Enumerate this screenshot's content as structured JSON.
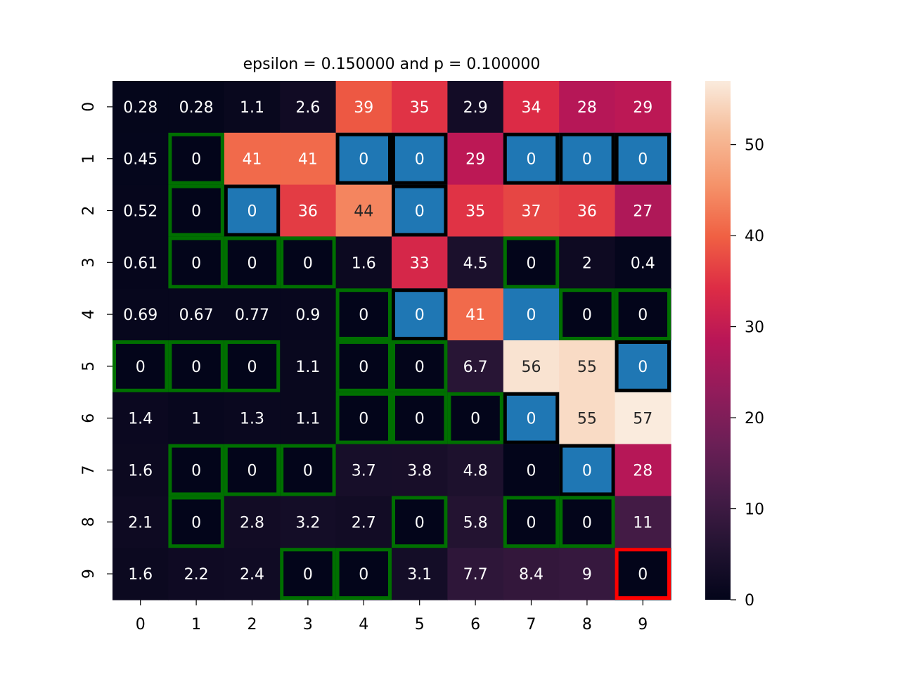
{
  "chart_data": {
    "type": "heatmap",
    "title": "epsilon = 0.150000 and p = 0.100000",
    "x_tick_labels": [
      "0",
      "1",
      "2",
      "3",
      "4",
      "5",
      "6",
      "7",
      "8",
      "9"
    ],
    "y_tick_labels": [
      "0",
      "1",
      "2",
      "3",
      "4",
      "5",
      "6",
      "7",
      "8",
      "9"
    ],
    "values": [
      [
        0.28,
        0.28,
        1.1,
        2.6,
        39,
        35,
        2.9,
        34,
        28,
        29
      ],
      [
        0.45,
        0,
        41,
        41,
        0,
        0,
        29,
        0,
        0,
        0
      ],
      [
        0.52,
        0,
        0,
        36,
        44,
        0,
        35,
        37,
        36,
        27
      ],
      [
        0.61,
        0,
        0,
        0,
        1.6,
        33,
        4.5,
        0,
        2,
        0.4
      ],
      [
        0.69,
        0.67,
        0.77,
        0.9,
        0,
        0,
        41,
        0,
        0,
        0
      ],
      [
        0,
        0,
        0,
        1.1,
        0,
        0,
        6.7,
        56,
        55,
        0
      ],
      [
        1.4,
        1,
        1.3,
        1.1,
        0,
        0,
        0,
        0,
        55,
        57
      ],
      [
        1.6,
        0,
        0,
        0,
        3.7,
        3.8,
        4.8,
        0,
        0,
        28
      ],
      [
        2.1,
        0,
        2.8,
        3.2,
        2.7,
        0,
        5.8,
        0,
        0,
        11
      ],
      [
        1.6,
        2.2,
        2.4,
        0,
        0,
        3.1,
        7.7,
        8.4,
        9,
        0
      ]
    ],
    "labels": [
      [
        "0.28",
        "0.28",
        "1.1",
        "2.6",
        "39",
        "35",
        "2.9",
        "34",
        "28",
        "29"
      ],
      [
        "0.45",
        "0",
        "41",
        "41",
        "0",
        "0",
        "29",
        "0",
        "0",
        "0"
      ],
      [
        "0.52",
        "0",
        "0",
        "36",
        "44",
        "0",
        "35",
        "37",
        "36",
        "27"
      ],
      [
        "0.61",
        "0",
        "0",
        "0",
        "1.6",
        "33",
        "4.5",
        "0",
        "2",
        "0.4"
      ],
      [
        "0.69",
        "0.67",
        "0.77",
        "0.9",
        "0",
        "0",
        "41",
        "0",
        "0",
        "0"
      ],
      [
        "0",
        "0",
        "0",
        "1.1",
        "0",
        "0",
        "6.7",
        "56",
        "55",
        "0"
      ],
      [
        "1.4",
        "1",
        "1.3",
        "1.1",
        "0",
        "0",
        "0",
        "0",
        "55",
        "57"
      ],
      [
        "1.6",
        "0",
        "0",
        "0",
        "3.7",
        "3.8",
        "4.8",
        "0",
        "0",
        "28"
      ],
      [
        "2.1",
        "0",
        "2.8",
        "3.2",
        "2.7",
        "0",
        "5.8",
        "0",
        "0",
        "11"
      ],
      [
        "1.6",
        "2.2",
        "2.4",
        "0",
        "0",
        "3.1",
        "7.7",
        "8.4",
        "9",
        "0"
      ]
    ],
    "colorbar": {
      "min": 0,
      "max": 57,
      "ticks": [
        0,
        10,
        20,
        30,
        40,
        50
      ]
    },
    "colormap": "rocket",
    "blue_cells": [
      [
        1,
        4
      ],
      [
        1,
        5
      ],
      [
        1,
        7
      ],
      [
        1,
        8
      ],
      [
        1,
        9
      ],
      [
        2,
        2
      ],
      [
        2,
        5
      ],
      [
        4,
        5
      ],
      [
        4,
        7
      ],
      [
        5,
        9
      ],
      [
        6,
        7
      ],
      [
        7,
        8
      ]
    ],
    "black_outlined_cells": [
      [
        1,
        4
      ],
      [
        1,
        5
      ],
      [
        1,
        7
      ],
      [
        1,
        8
      ],
      [
        1,
        9
      ],
      [
        2,
        2
      ],
      [
        2,
        5
      ],
      [
        4,
        5
      ],
      [
        5,
        9
      ],
      [
        6,
        7
      ],
      [
        7,
        8
      ]
    ],
    "green_outlined_cells": [
      [
        1,
        1
      ],
      [
        2,
        1
      ],
      [
        3,
        1
      ],
      [
        3,
        2
      ],
      [
        3,
        3
      ],
      [
        3,
        7
      ],
      [
        4,
        4
      ],
      [
        4,
        8
      ],
      [
        4,
        9
      ],
      [
        5,
        0
      ],
      [
        5,
        1
      ],
      [
        5,
        2
      ],
      [
        5,
        4
      ],
      [
        5,
        5
      ],
      [
        6,
        4
      ],
      [
        6,
        5
      ],
      [
        6,
        6
      ],
      [
        7,
        1
      ],
      [
        7,
        2
      ],
      [
        7,
        3
      ],
      [
        8,
        1
      ],
      [
        8,
        5
      ],
      [
        8,
        7
      ],
      [
        8,
        8
      ],
      [
        9,
        3
      ],
      [
        9,
        4
      ]
    ],
    "red_outlined_cells": [
      [
        9,
        9
      ]
    ],
    "colors": {
      "blue_cell": "#1f77b4",
      "black_outline": "#000000",
      "green_outline": "#007000",
      "red_outline": "#ff0000"
    }
  }
}
